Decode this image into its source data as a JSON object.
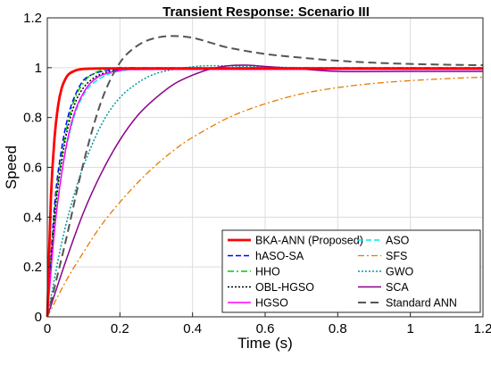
{
  "chart_data": {
    "type": "line",
    "title": "Transient Response: Scenario III",
    "xlabel": "Time (s)",
    "ylabel": "Speed",
    "xlim": [
      0,
      1.2
    ],
    "ylim": [
      0,
      1.2
    ],
    "xticks": [
      "0",
      "0.2",
      "0.4",
      "0.6",
      "0.8",
      "1",
      "1.2"
    ],
    "yticks": [
      "0",
      "0.2",
      "0.4",
      "0.6",
      "0.8",
      "1",
      "1.2"
    ],
    "grid": true,
    "legend_position": "bottom-right",
    "series": [
      {
        "name": "BKA-ANN (Proposed)",
        "color": "#ff0000",
        "style": "solid",
        "width": 2.8,
        "points": [
          [
            0,
            0
          ],
          [
            0.01,
            0.48
          ],
          [
            0.02,
            0.72
          ],
          [
            0.03,
            0.85
          ],
          [
            0.04,
            0.92
          ],
          [
            0.05,
            0.955
          ],
          [
            0.06,
            0.975
          ],
          [
            0.08,
            0.99
          ],
          [
            0.1,
            0.995
          ],
          [
            0.15,
            0.997
          ],
          [
            0.3,
            0.997
          ],
          [
            1.2,
            0.997
          ]
        ]
      },
      {
        "name": "hASO-SA",
        "color": "#0000ff",
        "style": "dash",
        "width": 1.5,
        "points": [
          [
            0,
            0
          ],
          [
            0.02,
            0.45
          ],
          [
            0.04,
            0.68
          ],
          [
            0.06,
            0.82
          ],
          [
            0.08,
            0.9
          ],
          [
            0.1,
            0.95
          ],
          [
            0.12,
            0.97
          ],
          [
            0.15,
            0.985
          ],
          [
            0.2,
            0.992
          ],
          [
            0.3,
            0.995
          ],
          [
            1.2,
            0.995
          ]
        ]
      },
      {
        "name": "ASO",
        "color": "#00e5ee",
        "style": "dash",
        "width": 1.5,
        "points": [
          [
            0,
            0
          ],
          [
            0.02,
            0.35
          ],
          [
            0.04,
            0.58
          ],
          [
            0.06,
            0.73
          ],
          [
            0.08,
            0.83
          ],
          [
            0.1,
            0.89
          ],
          [
            0.12,
            0.93
          ],
          [
            0.15,
            0.96
          ],
          [
            0.18,
            0.98
          ],
          [
            0.22,
            0.99
          ],
          [
            0.3,
            0.993
          ],
          [
            1.2,
            0.993
          ]
        ]
      },
      {
        "name": "HHO",
        "color": "#00cc00",
        "style": "dashdot",
        "width": 1.5,
        "points": [
          [
            0,
            0
          ],
          [
            0.02,
            0.42
          ],
          [
            0.04,
            0.65
          ],
          [
            0.06,
            0.8
          ],
          [
            0.08,
            0.89
          ],
          [
            0.1,
            0.94
          ],
          [
            0.12,
            0.97
          ],
          [
            0.15,
            0.99
          ],
          [
            0.2,
            1.0
          ],
          [
            0.3,
            1.0
          ],
          [
            1.2,
            1.0
          ]
        ]
      },
      {
        "name": "SFS",
        "color": "#e87a00",
        "style": "dashdot",
        "width": 1.3,
        "points": [
          [
            0,
            0
          ],
          [
            0.05,
            0.14
          ],
          [
            0.1,
            0.26
          ],
          [
            0.15,
            0.37
          ],
          [
            0.2,
            0.46
          ],
          [
            0.25,
            0.54
          ],
          [
            0.3,
            0.61
          ],
          [
            0.35,
            0.67
          ],
          [
            0.4,
            0.72
          ],
          [
            0.5,
            0.8
          ],
          [
            0.6,
            0.855
          ],
          [
            0.7,
            0.895
          ],
          [
            0.8,
            0.92
          ],
          [
            0.9,
            0.937
          ],
          [
            1.0,
            0.948
          ],
          [
            1.1,
            0.956
          ],
          [
            1.2,
            0.962
          ]
        ]
      },
      {
        "name": "OBL-HGSO",
        "color": "#000000",
        "style": "dot",
        "width": 1.5,
        "points": [
          [
            0,
            0
          ],
          [
            0.02,
            0.4
          ],
          [
            0.04,
            0.63
          ],
          [
            0.06,
            0.78
          ],
          [
            0.08,
            0.87
          ],
          [
            0.1,
            0.92
          ],
          [
            0.12,
            0.95
          ],
          [
            0.15,
            0.975
          ],
          [
            0.2,
            0.99
          ],
          [
            0.3,
            0.995
          ],
          [
            1.2,
            0.995
          ]
        ]
      },
      {
        "name": "GWO",
        "color": "#009999",
        "style": "dot",
        "width": 1.5,
        "points": [
          [
            0,
            0
          ],
          [
            0.04,
            0.3
          ],
          [
            0.08,
            0.52
          ],
          [
            0.12,
            0.68
          ],
          [
            0.16,
            0.8
          ],
          [
            0.2,
            0.88
          ],
          [
            0.24,
            0.93
          ],
          [
            0.28,
            0.965
          ],
          [
            0.32,
            0.985
          ],
          [
            0.38,
            1.0
          ],
          [
            0.45,
            1.008
          ],
          [
            0.6,
            1.003
          ],
          [
            0.8,
            0.998
          ],
          [
            1.2,
            0.997
          ]
        ]
      },
      {
        "name": "HGSO",
        "color": "#ff00ff",
        "style": "solid",
        "width": 1.5,
        "points": [
          [
            0,
            0
          ],
          [
            0.02,
            0.35
          ],
          [
            0.04,
            0.58
          ],
          [
            0.06,
            0.74
          ],
          [
            0.08,
            0.84
          ],
          [
            0.1,
            0.9
          ],
          [
            0.12,
            0.94
          ],
          [
            0.15,
            0.97
          ],
          [
            0.2,
            0.988
          ],
          [
            0.3,
            0.993
          ],
          [
            1.2,
            0.993
          ]
        ]
      },
      {
        "name": "SCA",
        "color": "#8b008b",
        "style": "solid",
        "width": 1.5,
        "points": [
          [
            0,
            0
          ],
          [
            0.05,
            0.22
          ],
          [
            0.1,
            0.42
          ],
          [
            0.15,
            0.58
          ],
          [
            0.2,
            0.71
          ],
          [
            0.25,
            0.81
          ],
          [
            0.3,
            0.88
          ],
          [
            0.35,
            0.935
          ],
          [
            0.4,
            0.97
          ],
          [
            0.45,
            0.995
          ],
          [
            0.5,
            1.008
          ],
          [
            0.55,
            1.01
          ],
          [
            0.6,
            1.005
          ],
          [
            0.7,
            0.995
          ],
          [
            0.8,
            0.985
          ],
          [
            1.0,
            0.985
          ],
          [
            1.2,
            0.985
          ]
        ]
      },
      {
        "name": "Standard ANN",
        "color": "#555555",
        "style": "longdash",
        "width": 2,
        "points": [
          [
            0,
            0
          ],
          [
            0.05,
            0.3
          ],
          [
            0.1,
            0.62
          ],
          [
            0.15,
            0.87
          ],
          [
            0.2,
            1.02
          ],
          [
            0.25,
            1.09
          ],
          [
            0.3,
            1.12
          ],
          [
            0.35,
            1.127
          ],
          [
            0.4,
            1.12
          ],
          [
            0.45,
            1.1
          ],
          [
            0.5,
            1.08
          ],
          [
            0.6,
            1.055
          ],
          [
            0.7,
            1.04
          ],
          [
            0.8,
            1.028
          ],
          [
            0.9,
            1.02
          ],
          [
            1.0,
            1.015
          ],
          [
            1.1,
            1.012
          ],
          [
            1.2,
            1.01
          ]
        ]
      }
    ],
    "legend_order": [
      "BKA-ANN (Proposed)",
      "ASO",
      "hASO-SA",
      "SFS",
      "HHO",
      "GWO",
      "OBL-HGSO",
      "SCA",
      "HGSO",
      "Standard ANN"
    ]
  }
}
